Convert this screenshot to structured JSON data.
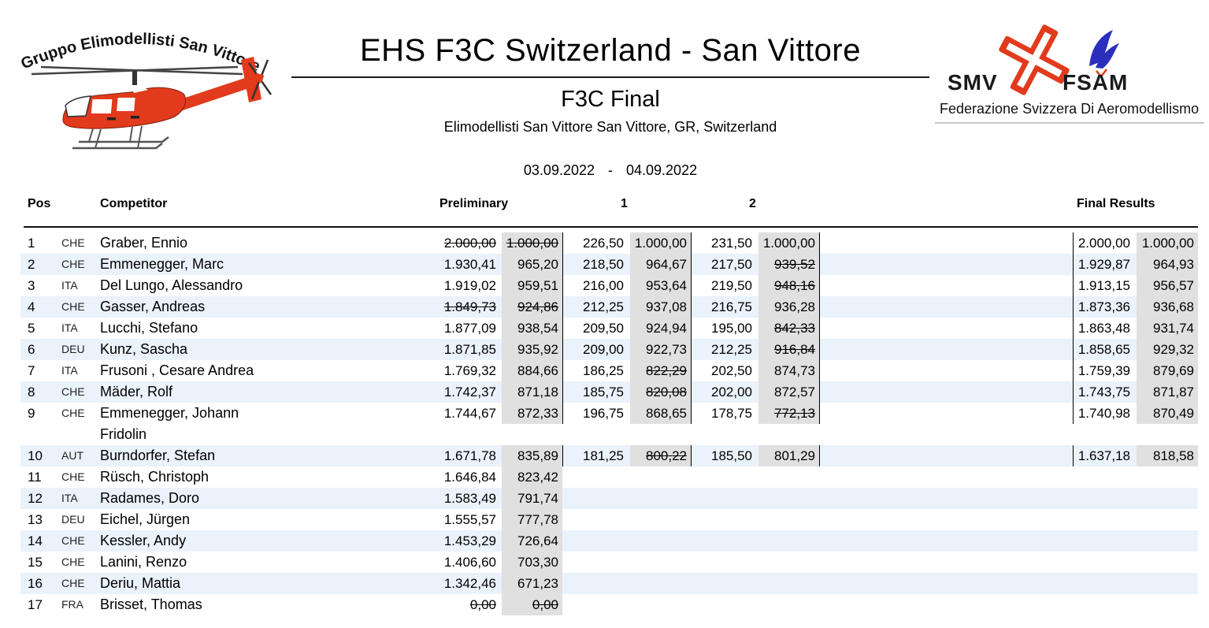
{
  "logo_left": {
    "arc_text": "Gruppo Elimodellisti San Vittore"
  },
  "header": {
    "title": "EHS F3C Switzerland - San Vittore",
    "event": "F3C Final",
    "venue": "Elimodellisti San Vittore San Vittore, GR, Switzerland",
    "date_from": "03.09.2022",
    "date_separator": "-",
    "date_to": "04.09.2022"
  },
  "federation": {
    "left_acronym": "SMV",
    "right_acronym": "FSAM",
    "caption": "Federazione Svizzera Di Aeromodellismo"
  },
  "colors": {
    "norm_cell_gray": "#e0e0e0",
    "row_stripe_blue": "#eaf2fb",
    "logo_red": "#e23a1c",
    "wing_blue": "#2a2fbe"
  },
  "table": {
    "headers": {
      "pos": "Pos",
      "competitor": "Competitor",
      "preliminary": "Preliminary",
      "round1": "1",
      "round2": "2",
      "final": "Final Results"
    },
    "rows": [
      {
        "pos": "1",
        "country": "CHE",
        "name": "Graber, Ennio",
        "name2": "",
        "prelim_raw": "2.000,00",
        "prelim_norm": "1.000,00",
        "prelim_struck": true,
        "r1_raw": "226,50",
        "r1_norm": "1.000,00",
        "r1_norm_struck": false,
        "r2_raw": "231,50",
        "r2_norm": "1.000,00",
        "r2_norm_struck": false,
        "final_raw": "2.000,00",
        "final_norm": "1.000,00"
      },
      {
        "pos": "2",
        "country": "CHE",
        "name": "Emmenegger, Marc",
        "name2": "",
        "prelim_raw": "1.930,41",
        "prelim_norm": "965,20",
        "prelim_struck": false,
        "r1_raw": "218,50",
        "r1_norm": "964,67",
        "r1_norm_struck": false,
        "r2_raw": "217,50",
        "r2_norm": "939,52",
        "r2_norm_struck": true,
        "final_raw": "1.929,87",
        "final_norm": "964,93"
      },
      {
        "pos": "3",
        "country": "ITA",
        "name": "Del Lungo, Alessandro",
        "name2": "",
        "prelim_raw": "1.919,02",
        "prelim_norm": "959,51",
        "prelim_struck": false,
        "r1_raw": "216,00",
        "r1_norm": "953,64",
        "r1_norm_struck": false,
        "r2_raw": "219,50",
        "r2_norm": "948,16",
        "r2_norm_struck": true,
        "final_raw": "1.913,15",
        "final_norm": "956,57"
      },
      {
        "pos": "4",
        "country": "CHE",
        "name": "Gasser, Andreas",
        "name2": "",
        "prelim_raw": "1.849,73",
        "prelim_norm": "924,86",
        "prelim_struck": true,
        "r1_raw": "212,25",
        "r1_norm": "937,08",
        "r1_norm_struck": false,
        "r2_raw": "216,75",
        "r2_norm": "936,28",
        "r2_norm_struck": false,
        "final_raw": "1.873,36",
        "final_norm": "936,68"
      },
      {
        "pos": "5",
        "country": "ITA",
        "name": "Lucchi, Stefano",
        "name2": "",
        "prelim_raw": "1.877,09",
        "prelim_norm": "938,54",
        "prelim_struck": false,
        "r1_raw": "209,50",
        "r1_norm": "924,94",
        "r1_norm_struck": false,
        "r2_raw": "195,00",
        "r2_norm": "842,33",
        "r2_norm_struck": true,
        "final_raw": "1.863,48",
        "final_norm": "931,74"
      },
      {
        "pos": "6",
        "country": "DEU",
        "name": "Kunz, Sascha",
        "name2": "",
        "prelim_raw": "1.871,85",
        "prelim_norm": "935,92",
        "prelim_struck": false,
        "r1_raw": "209,00",
        "r1_norm": "922,73",
        "r1_norm_struck": false,
        "r2_raw": "212,25",
        "r2_norm": "916,84",
        "r2_norm_struck": true,
        "final_raw": "1.858,65",
        "final_norm": "929,32"
      },
      {
        "pos": "7",
        "country": "ITA",
        "name": "Frusoni , Cesare Andrea",
        "name2": "",
        "prelim_raw": "1.769,32",
        "prelim_norm": "884,66",
        "prelim_struck": false,
        "r1_raw": "186,25",
        "r1_norm": "822,29",
        "r1_norm_struck": true,
        "r2_raw": "202,50",
        "r2_norm": "874,73",
        "r2_norm_struck": false,
        "final_raw": "1.759,39",
        "final_norm": "879,69"
      },
      {
        "pos": "8",
        "country": "CHE",
        "name": "Mäder, Rolf",
        "name2": "",
        "prelim_raw": "1.742,37",
        "prelim_norm": "871,18",
        "prelim_struck": false,
        "r1_raw": "185,75",
        "r1_norm": "820,08",
        "r1_norm_struck": true,
        "r2_raw": "202,00",
        "r2_norm": "872,57",
        "r2_norm_struck": false,
        "final_raw": "1.743,75",
        "final_norm": "871,87"
      },
      {
        "pos": "9",
        "country": "CHE",
        "name": "Emmenegger, Johann",
        "name2": "Fridolin",
        "prelim_raw": "1.744,67",
        "prelim_norm": "872,33",
        "prelim_struck": false,
        "r1_raw": "196,75",
        "r1_norm": "868,65",
        "r1_norm_struck": false,
        "r2_raw": "178,75",
        "r2_norm": "772,13",
        "r2_norm_struck": true,
        "final_raw": "1.740,98",
        "final_norm": "870,49"
      },
      {
        "pos": "10",
        "country": "AUT",
        "name": "Burndorfer, Stefan",
        "name2": "",
        "prelim_raw": "1.671,78",
        "prelim_norm": "835,89",
        "prelim_struck": false,
        "r1_raw": "181,25",
        "r1_norm": "800,22",
        "r1_norm_struck": true,
        "r2_raw": "185,50",
        "r2_norm": "801,29",
        "r2_norm_struck": false,
        "final_raw": "1.637,18",
        "final_norm": "818,58"
      },
      {
        "pos": "11",
        "country": "CHE",
        "name": "Rüsch, Christoph",
        "name2": "",
        "prelim_raw": "1.646,84",
        "prelim_norm": "823,42",
        "prelim_struck": false,
        "r1_raw": "",
        "r1_norm": "",
        "r1_norm_struck": false,
        "r2_raw": "",
        "r2_norm": "",
        "r2_norm_struck": false,
        "final_raw": "",
        "final_norm": ""
      },
      {
        "pos": "12",
        "country": "ITA",
        "name": "Radames, Doro",
        "name2": "",
        "prelim_raw": "1.583,49",
        "prelim_norm": "791,74",
        "prelim_struck": false,
        "r1_raw": "",
        "r1_norm": "",
        "r1_norm_struck": false,
        "r2_raw": "",
        "r2_norm": "",
        "r2_norm_struck": false,
        "final_raw": "",
        "final_norm": ""
      },
      {
        "pos": "13",
        "country": "DEU",
        "name": "Eichel, Jürgen",
        "name2": "",
        "prelim_raw": "1.555,57",
        "prelim_norm": "777,78",
        "prelim_struck": false,
        "r1_raw": "",
        "r1_norm": "",
        "r1_norm_struck": false,
        "r2_raw": "",
        "r2_norm": "",
        "r2_norm_struck": false,
        "final_raw": "",
        "final_norm": ""
      },
      {
        "pos": "14",
        "country": "CHE",
        "name": "Kessler, Andy",
        "name2": "",
        "prelim_raw": "1.453,29",
        "prelim_norm": "726,64",
        "prelim_struck": false,
        "r1_raw": "",
        "r1_norm": "",
        "r1_norm_struck": false,
        "r2_raw": "",
        "r2_norm": "",
        "r2_norm_struck": false,
        "final_raw": "",
        "final_norm": ""
      },
      {
        "pos": "15",
        "country": "CHE",
        "name": "Lanini, Renzo",
        "name2": "",
        "prelim_raw": "1.406,60",
        "prelim_norm": "703,30",
        "prelim_struck": false,
        "r1_raw": "",
        "r1_norm": "",
        "r1_norm_struck": false,
        "r2_raw": "",
        "r2_norm": "",
        "r2_norm_struck": false,
        "final_raw": "",
        "final_norm": ""
      },
      {
        "pos": "16",
        "country": "CHE",
        "name": "Deriu, Mattia",
        "name2": "",
        "prelim_raw": "1.342,46",
        "prelim_norm": "671,23",
        "prelim_struck": false,
        "r1_raw": "",
        "r1_norm": "",
        "r1_norm_struck": false,
        "r2_raw": "",
        "r2_norm": "",
        "r2_norm_struck": false,
        "final_raw": "",
        "final_norm": ""
      },
      {
        "pos": "17",
        "country": "FRA",
        "name": "Brisset, Thomas",
        "name2": "",
        "prelim_raw": "0,00",
        "prelim_norm": "0,00",
        "prelim_struck": true,
        "r1_raw": "",
        "r1_norm": "",
        "r1_norm_struck": false,
        "r2_raw": "",
        "r2_norm": "",
        "r2_norm_struck": false,
        "final_raw": "",
        "final_norm": ""
      }
    ]
  }
}
